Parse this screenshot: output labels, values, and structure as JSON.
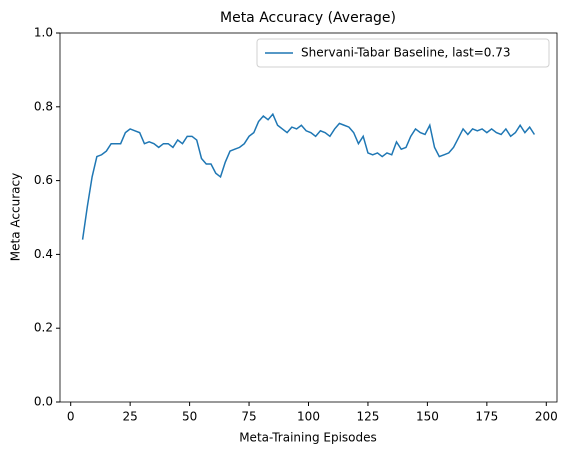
{
  "chart_data": {
    "type": "line",
    "title": "Meta Accuracy (Average)",
    "xlabel": "Meta-Training Episodes",
    "ylabel": "Meta Accuracy",
    "x": [
      5,
      7,
      9,
      11,
      13,
      15,
      17,
      19,
      21,
      23,
      25,
      27,
      29,
      31,
      33,
      35,
      37,
      39,
      41,
      43,
      45,
      47,
      49,
      51,
      53,
      55,
      57,
      59,
      61,
      63,
      65,
      67,
      69,
      71,
      73,
      75,
      77,
      79,
      81,
      83,
      85,
      87,
      89,
      91,
      93,
      95,
      97,
      99,
      101,
      103,
      105,
      107,
      109,
      111,
      113,
      115,
      117,
      119,
      121,
      123,
      125,
      127,
      129,
      131,
      133,
      135,
      137,
      139,
      141,
      143,
      145,
      147,
      149,
      151,
      153,
      155,
      157,
      159,
      161,
      163,
      165,
      167,
      169,
      171,
      173,
      175,
      177,
      179,
      181,
      183,
      185,
      187,
      189,
      191,
      193,
      195
    ],
    "series": [
      {
        "name": "Shervani-Tabar Baseline, last=0.73",
        "color": "#1f77b4",
        "values": [
          0.44,
          0.53,
          0.61,
          0.665,
          0.67,
          0.68,
          0.7,
          0.7,
          0.7,
          0.73,
          0.74,
          0.735,
          0.73,
          0.7,
          0.705,
          0.7,
          0.69,
          0.7,
          0.7,
          0.69,
          0.71,
          0.7,
          0.72,
          0.72,
          0.71,
          0.66,
          0.645,
          0.645,
          0.62,
          0.61,
          0.65,
          0.68,
          0.685,
          0.69,
          0.7,
          0.72,
          0.73,
          0.76,
          0.775,
          0.765,
          0.78,
          0.75,
          0.74,
          0.73,
          0.745,
          0.74,
          0.75,
          0.735,
          0.73,
          0.72,
          0.735,
          0.73,
          0.72,
          0.74,
          0.755,
          0.75,
          0.745,
          0.73,
          0.7,
          0.72,
          0.675,
          0.67,
          0.675,
          0.665,
          0.675,
          0.67,
          0.705,
          0.685,
          0.69,
          0.72,
          0.74,
          0.73,
          0.725,
          0.75,
          0.69,
          0.665,
          0.67,
          0.675,
          0.69,
          0.715,
          0.74,
          0.725,
          0.74,
          0.735,
          0.74,
          0.73,
          0.74,
          0.73,
          0.725,
          0.74,
          0.72,
          0.73,
          0.75,
          0.73,
          0.745,
          0.725
        ]
      }
    ],
    "xlim": [
      -4.5,
      204.5
    ],
    "ylim": [
      0,
      1
    ],
    "xticks": [
      0,
      25,
      50,
      75,
      100,
      125,
      150,
      175,
      200
    ],
    "yticks": [
      {
        "value": 0,
        "label": "0.0"
      },
      {
        "value": 0.2,
        "label": "0.2"
      },
      {
        "value": 0.4,
        "label": "0.4"
      },
      {
        "value": 0.6,
        "label": "0.6"
      },
      {
        "value": 0.8,
        "label": "0.8"
      },
      {
        "value": 1,
        "label": "1.0"
      }
    ],
    "grid": false,
    "legend": "upper right"
  }
}
